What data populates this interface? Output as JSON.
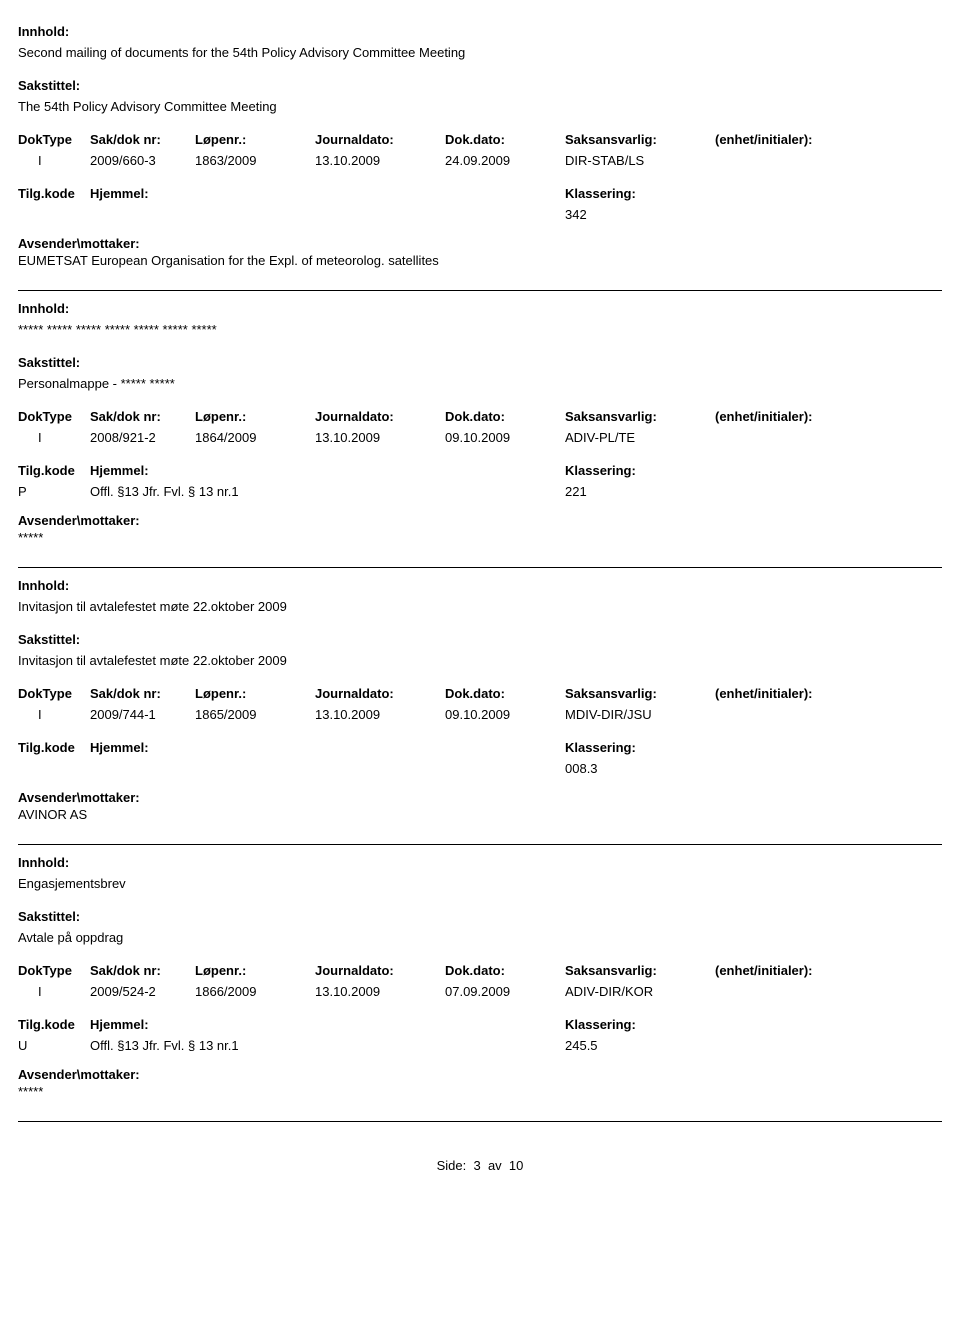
{
  "labels": {
    "innhold": "Innhold:",
    "sakstittel": "Sakstittel:",
    "doktype": "DokType",
    "sakdok": "Sak/dok nr:",
    "lopenr": "Løpenr.:",
    "journaldato": "Journaldato:",
    "dokdato": "Dok.dato:",
    "saksansvarlig": "Saksansvarlig:",
    "enhet": "(enhet/initialer):",
    "tilgkode": "Tilg.kode",
    "hjemmel": "Hjemmel:",
    "klassering": "Klassering:",
    "avsender": "Avsender\\mottaker:"
  },
  "entries": [
    {
      "innhold": "Second mailing of documents for the 54th Policy Advisory Committee Meeting",
      "sakstittel": "The 54th Policy Advisory Committee Meeting",
      "doktype": "I",
      "sakdok": "2009/660-3",
      "lopenr": "1863/2009",
      "journaldato": "13.10.2009",
      "dokdato": "24.09.2009",
      "saksansvarlig": "DIR-STAB/LS",
      "enhet": "",
      "tilgkode": "",
      "hjemmel": "",
      "klassering": "342",
      "avsender": "EUMETSAT European Organisation for the Expl. of meteorolog. satellites"
    },
    {
      "innhold": "***** ***** ***** ***** ***** ***** *****",
      "sakstittel": "Personalmappe - ***** *****",
      "doktype": "I",
      "sakdok": "2008/921-2",
      "lopenr": "1864/2009",
      "journaldato": "13.10.2009",
      "dokdato": "09.10.2009",
      "saksansvarlig": "ADIV-PL/TE",
      "enhet": "",
      "tilgkode": "P",
      "hjemmel": "Offl. §13 Jfr. Fvl. § 13 nr.1",
      "klassering": "221",
      "avsender": "*****"
    },
    {
      "innhold": "Invitasjon til avtalefestet møte 22.oktober 2009",
      "sakstittel": "Invitasjon til avtalefestet møte 22.oktober 2009",
      "doktype": "I",
      "sakdok": "2009/744-1",
      "lopenr": "1865/2009",
      "journaldato": "13.10.2009",
      "dokdato": "09.10.2009",
      "saksansvarlig": "MDIV-DIR/JSU",
      "enhet": "",
      "tilgkode": "",
      "hjemmel": "",
      "klassering": "008.3",
      "avsender": "AVINOR AS"
    },
    {
      "innhold": "Engasjementsbrev",
      "sakstittel": "Avtale på oppdrag",
      "doktype": "I",
      "sakdok": "2009/524-2",
      "lopenr": "1866/2009",
      "journaldato": "13.10.2009",
      "dokdato": "07.09.2009",
      "saksansvarlig": "ADIV-DIR/KOR",
      "enhet": "",
      "tilgkode": "U",
      "hjemmel": "Offl. §13 Jfr. Fvl. § 13 nr.1",
      "klassering": "245.5",
      "avsender": "*****"
    }
  ],
  "footer": {
    "label": "Side:",
    "page": "3",
    "sep": "av",
    "total": "10"
  }
}
